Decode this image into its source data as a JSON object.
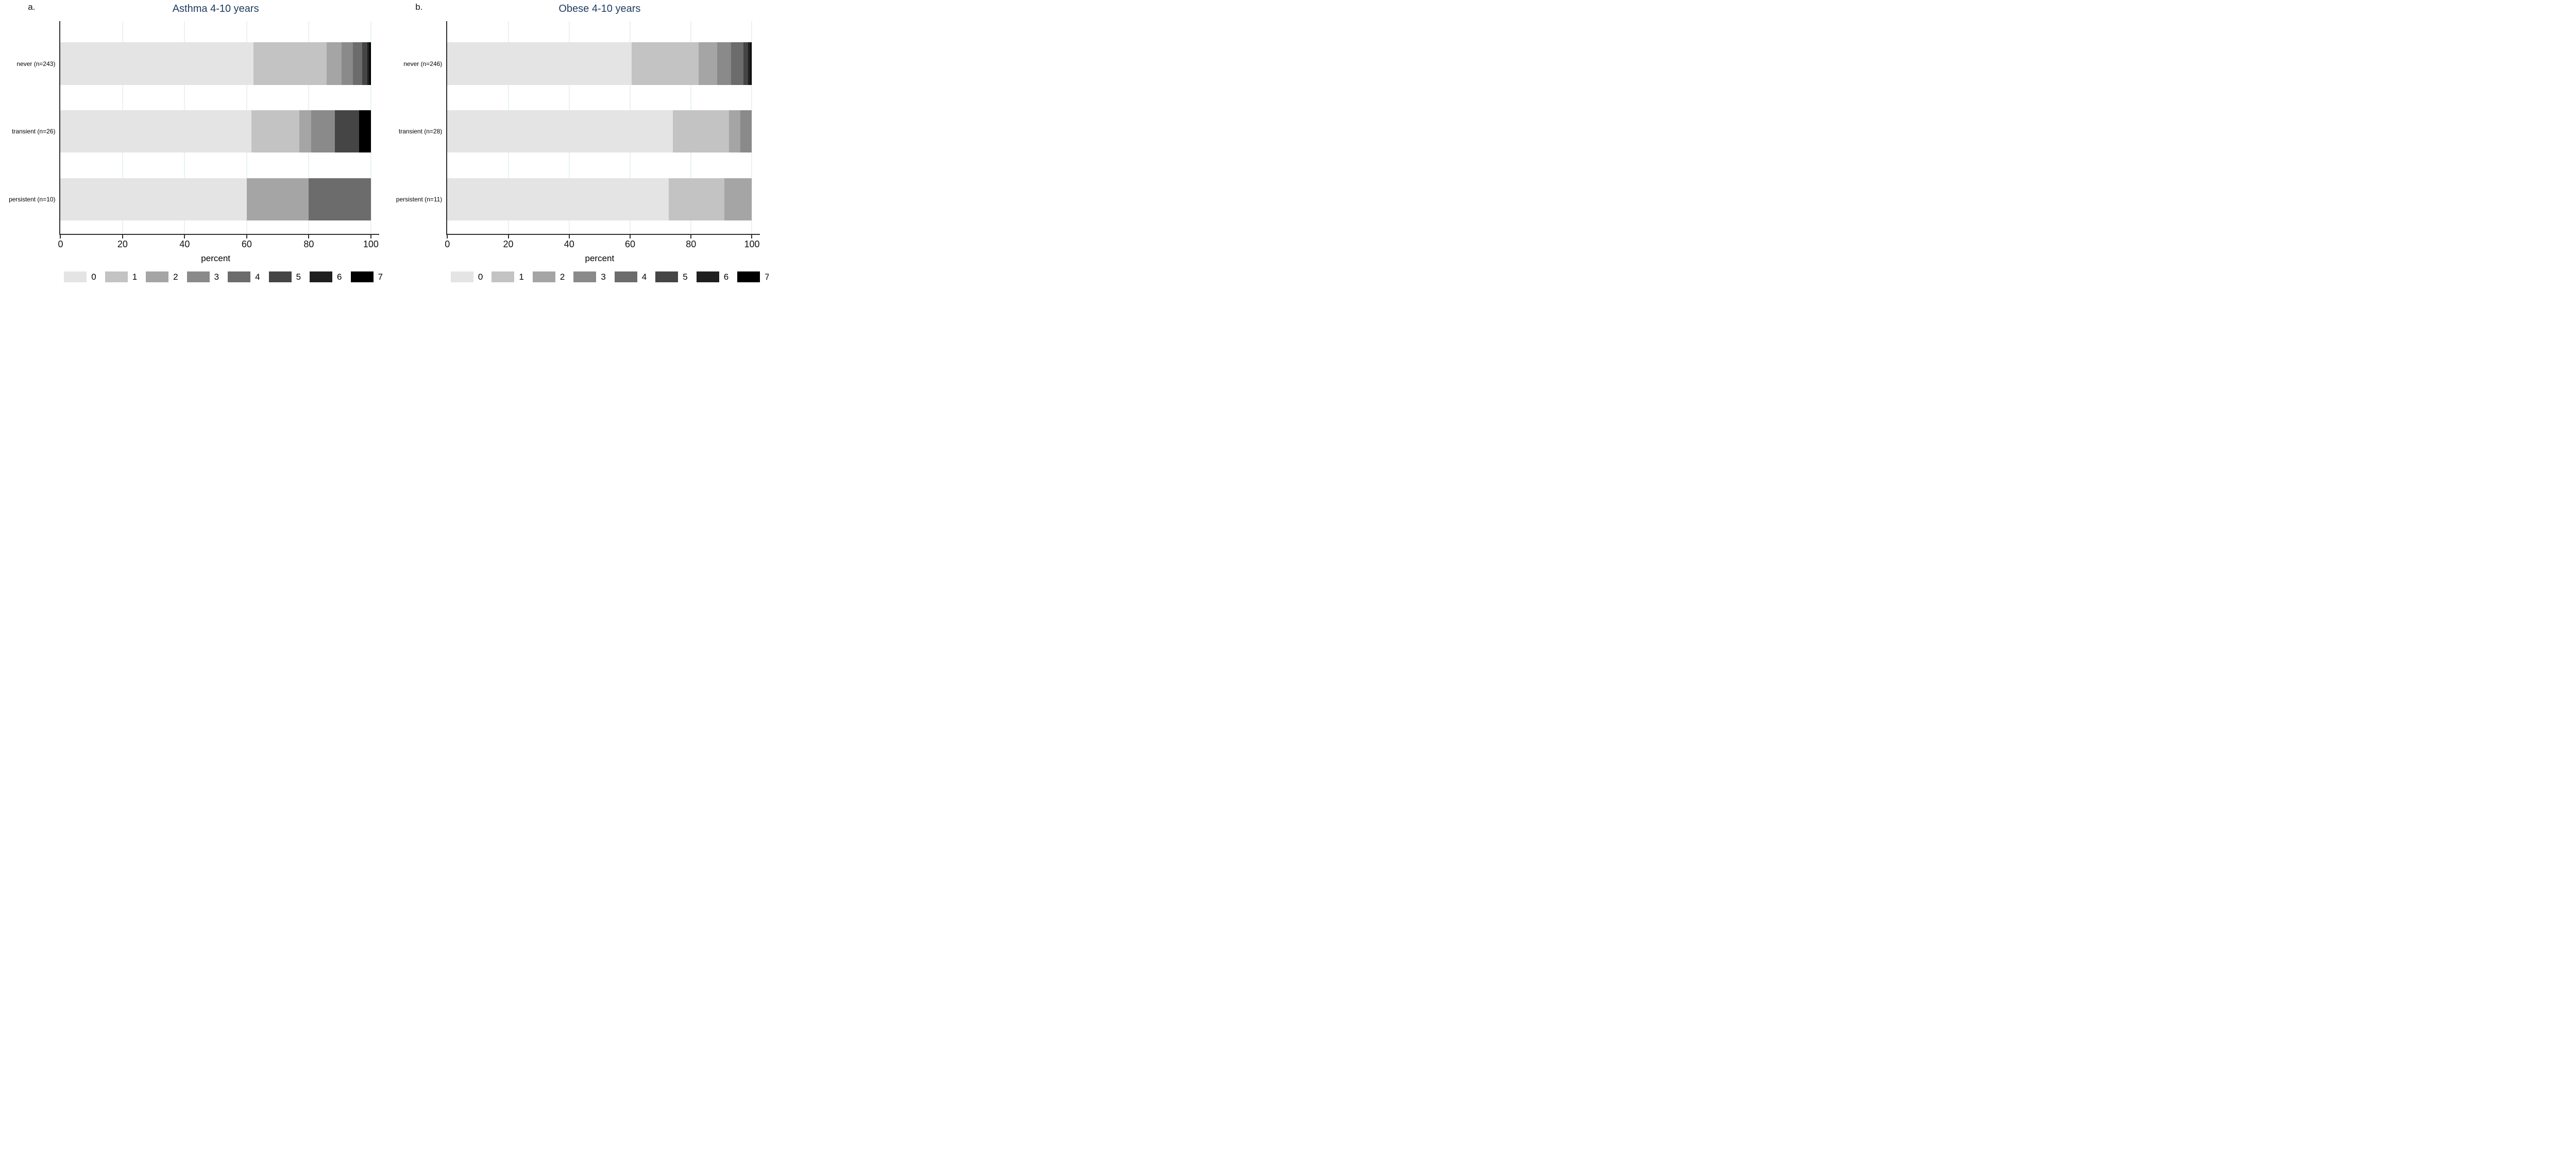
{
  "figure": {
    "xlabel": "percent",
    "x_ticks": [
      0,
      20,
      40,
      60,
      80,
      100
    ],
    "legend_labels": [
      "0",
      "1",
      "2",
      "3",
      "4",
      "5",
      "6",
      "7"
    ],
    "style": {
      "series_colors": [
        "#e4e4e4",
        "#c3c3c3",
        "#a5a5a5",
        "#8a8a8a",
        "#6c6c6c",
        "#454545",
        "#1f1f1f",
        "#000000"
      ],
      "title_color": "#1e3a5f",
      "axis_color": "#303030",
      "gridline_color": "#e8f2f5",
      "text_color": "#000000"
    }
  },
  "chart_data": [
    {
      "type": "bar",
      "orientation": "horizontal",
      "stacked": true,
      "panel_letter": "a.",
      "title": "Asthma 4-10 years",
      "xlabel": "percent",
      "xlim": [
        0,
        100
      ],
      "x_ticks": [
        0,
        20,
        40,
        60,
        80,
        100
      ],
      "grid": true,
      "legend_position": "bottom",
      "categories": [
        "never (n=243)",
        "transient (n=26)",
        "persistent (n=10)"
      ],
      "series": [
        {
          "name": "0",
          "values": [
            62.1,
            61.5,
            60.0
          ]
        },
        {
          "name": "1",
          "values": [
            23.5,
            15.4,
            0
          ]
        },
        {
          "name": "2",
          "values": [
            4.9,
            3.8,
            20.0
          ]
        },
        {
          "name": "3",
          "values": [
            3.7,
            7.7,
            0
          ]
        },
        {
          "name": "4",
          "values": [
            2.9,
            0,
            20.0
          ]
        },
        {
          "name": "5",
          "values": [
            1.6,
            7.7,
            0
          ]
        },
        {
          "name": "6",
          "values": [
            0.8,
            0,
            0
          ]
        },
        {
          "name": "7",
          "values": [
            0.4,
            3.8,
            0
          ]
        }
      ]
    },
    {
      "type": "bar",
      "orientation": "horizontal",
      "stacked": true,
      "panel_letter": "b.",
      "title": "Obese 4-10 years",
      "xlabel": "percent",
      "xlim": [
        0,
        100
      ],
      "x_ticks": [
        0,
        20,
        40,
        60,
        80,
        100
      ],
      "grid": true,
      "legend_position": "bottom",
      "categories": [
        "never (n=246)",
        "transient (n=28)",
        "persistent (n=11)"
      ],
      "series": [
        {
          "name": "0",
          "values": [
            60.6,
            71.4,
            72.7
          ]
        },
        {
          "name": "1",
          "values": [
            22.0,
            17.9,
            18.2
          ]
        },
        {
          "name": "2",
          "values": [
            6.1,
            3.6,
            9.1
          ]
        },
        {
          "name": "3",
          "values": [
            4.5,
            3.6,
            0
          ]
        },
        {
          "name": "4",
          "values": [
            4.1,
            0,
            0
          ]
        },
        {
          "name": "5",
          "values": [
            1.6,
            0,
            0
          ]
        },
        {
          "name": "6",
          "values": [
            0.8,
            0,
            0
          ]
        },
        {
          "name": "7",
          "values": [
            0.4,
            0,
            0
          ]
        }
      ]
    }
  ]
}
